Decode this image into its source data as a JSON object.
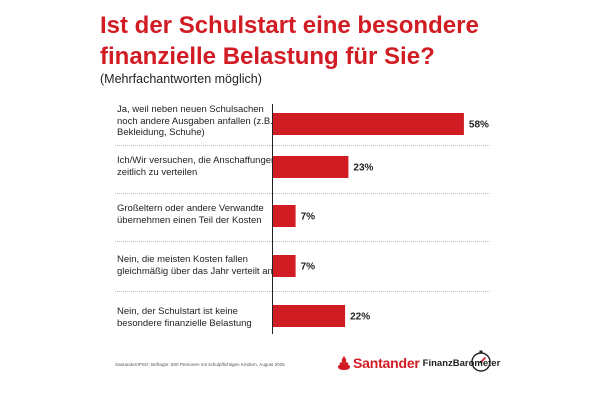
{
  "title": "Ist der Schulstart eine besondere finanzielle Belastung für Sie?",
  "subtitle": "(Mehrfachantworten möglich)",
  "source": "Santander/IPSO; Befragte: 500 Personen mit schulpflichtigen Kindern, August 2025",
  "brand": {
    "name": "Santander",
    "product": "FinanzBarometer",
    "color": "#d21c24",
    "icons": [
      "santander-flame-icon",
      "gauge-icon"
    ]
  },
  "chart_data": {
    "type": "bar",
    "orientation": "horizontal",
    "bar_color": "#d21c24",
    "xlim": [
      0,
      100
    ],
    "grid": false,
    "legend": "none",
    "categories": [
      "Ja, weil neben neuen Schulsachen noch andere Ausgaben anfallen (z.B. Bekleidung, Schuhe)",
      "Ich/Wir versuchen, die Anschaffungen zeitlich zu verteilen",
      "Großeltern oder andere Verwandte übernehmen einen Teil der Kosten",
      "Nein, die meisten Kosten fallen gleichmäßig über das Jahr verteilt an",
      "Nein, der Schulstart ist keine besondere finanzielle Belastung"
    ],
    "values": [
      58,
      23,
      7,
      7,
      22
    ],
    "data_labels": [
      "58%",
      "23%",
      "7%",
      "7%",
      "22%"
    ]
  }
}
